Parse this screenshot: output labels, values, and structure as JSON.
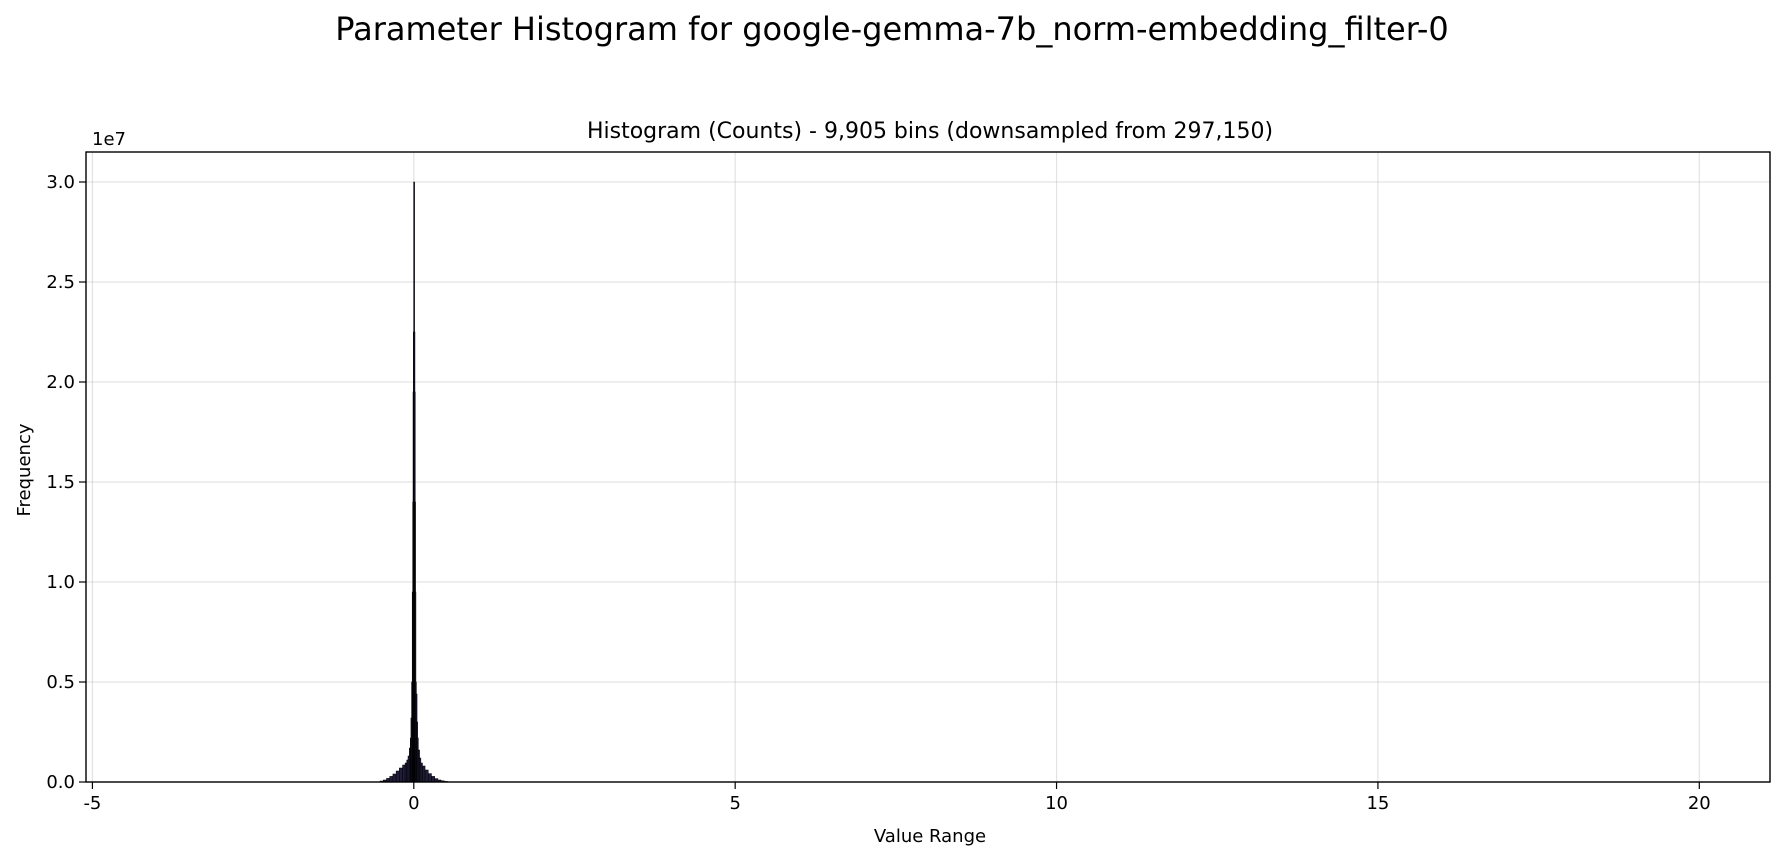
{
  "figure": {
    "suptitle": "Parameter Histogram for google-gemma-7b_norm-embedding_filter-0"
  },
  "chart_data": {
    "type": "bar",
    "title": "Histogram (Counts) - 9,905 bins (downsampled from 297,150)",
    "xlabel": "Value Range",
    "ylabel": "Frequency",
    "y_offset_label": "1e7",
    "xlim": [
      -5.1,
      21.1
    ],
    "ylim": [
      0,
      31500000
    ],
    "x_ticks": [
      -5,
      0,
      5,
      10,
      15,
      20
    ],
    "x_tick_labels": [
      "-5",
      "0",
      "5",
      "10",
      "15",
      "20"
    ],
    "y_ticks": [
      0,
      5000000,
      10000000,
      15000000,
      20000000,
      25000000,
      30000000
    ],
    "y_tick_labels": [
      "0.0",
      "0.5",
      "1.0",
      "1.5",
      "2.0",
      "2.5",
      "3.0"
    ],
    "grid": true,
    "bar_color": "#1f1d3a",
    "bins": {
      "x": [
        -0.5,
        -0.45,
        -0.4,
        -0.35,
        -0.3,
        -0.25,
        -0.2,
        -0.15,
        -0.12,
        -0.1,
        -0.08,
        -0.06,
        -0.05,
        -0.04,
        -0.03,
        -0.02,
        -0.015,
        -0.01,
        -0.005,
        0.0,
        0.005,
        0.01,
        0.015,
        0.02,
        0.03,
        0.04,
        0.05,
        0.06,
        0.08,
        0.1,
        0.12,
        0.15,
        0.2,
        0.25,
        0.3,
        0.35,
        0.4,
        0.45,
        0.5
      ],
      "values": [
        50000,
        100000,
        180000,
        280000,
        400000,
        550000,
        700000,
        850000,
        950000,
        1100000,
        1300000,
        1700000,
        2200000,
        3200000,
        5000000,
        9500000,
        14000000,
        19500000,
        22500000,
        30000000,
        22500000,
        19500000,
        14000000,
        9500000,
        5000000,
        4400000,
        3000000,
        2200000,
        1600000,
        1200000,
        950000,
        800000,
        600000,
        420000,
        280000,
        170000,
        100000,
        60000,
        30000
      ]
    }
  }
}
